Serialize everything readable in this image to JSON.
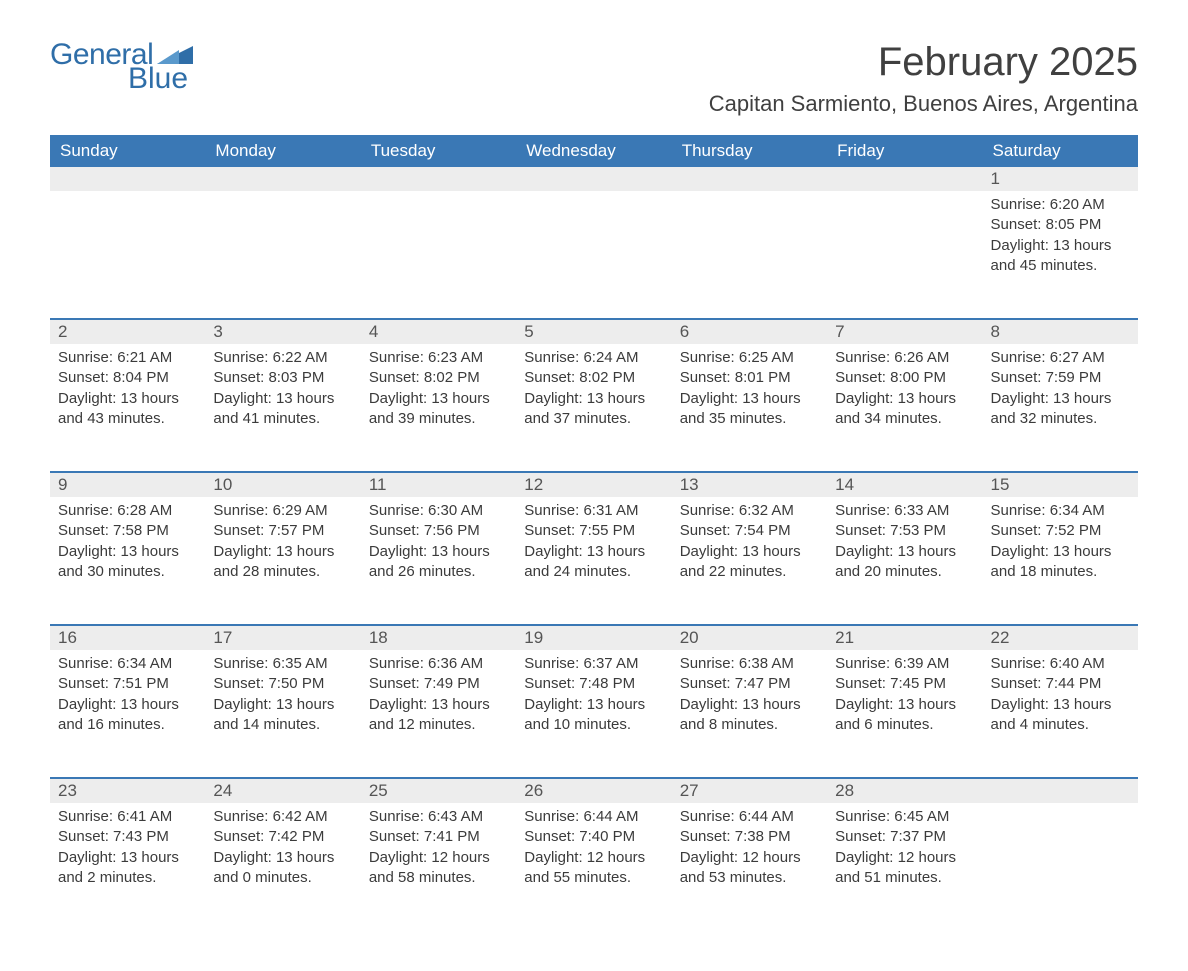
{
  "logo": {
    "text1": "General",
    "text2": "Blue",
    "triangle_color": "#2f6ea8"
  },
  "title": "February 2025",
  "location": "Capitan Sarmiento, Buenos Aires, Argentina",
  "colors": {
    "header_bg": "#3a78b5",
    "header_text": "#ffffff",
    "daynum_bg": "#ededed",
    "row_divider": "#3a78b5",
    "body_text": "#3b3b3b",
    "title_text": "#404040"
  },
  "day_headers": [
    "Sunday",
    "Monday",
    "Tuesday",
    "Wednesday",
    "Thursday",
    "Friday",
    "Saturday"
  ],
  "weeks": [
    [
      null,
      null,
      null,
      null,
      null,
      null,
      {
        "n": "1",
        "sunrise": "Sunrise: 6:20 AM",
        "sunset": "Sunset: 8:05 PM",
        "day1": "Daylight: 13 hours",
        "day2": "and 45 minutes."
      }
    ],
    [
      {
        "n": "2",
        "sunrise": "Sunrise: 6:21 AM",
        "sunset": "Sunset: 8:04 PM",
        "day1": "Daylight: 13 hours",
        "day2": "and 43 minutes."
      },
      {
        "n": "3",
        "sunrise": "Sunrise: 6:22 AM",
        "sunset": "Sunset: 8:03 PM",
        "day1": "Daylight: 13 hours",
        "day2": "and 41 minutes."
      },
      {
        "n": "4",
        "sunrise": "Sunrise: 6:23 AM",
        "sunset": "Sunset: 8:02 PM",
        "day1": "Daylight: 13 hours",
        "day2": "and 39 minutes."
      },
      {
        "n": "5",
        "sunrise": "Sunrise: 6:24 AM",
        "sunset": "Sunset: 8:02 PM",
        "day1": "Daylight: 13 hours",
        "day2": "and 37 minutes."
      },
      {
        "n": "6",
        "sunrise": "Sunrise: 6:25 AM",
        "sunset": "Sunset: 8:01 PM",
        "day1": "Daylight: 13 hours",
        "day2": "and 35 minutes."
      },
      {
        "n": "7",
        "sunrise": "Sunrise: 6:26 AM",
        "sunset": "Sunset: 8:00 PM",
        "day1": "Daylight: 13 hours",
        "day2": "and 34 minutes."
      },
      {
        "n": "8",
        "sunrise": "Sunrise: 6:27 AM",
        "sunset": "Sunset: 7:59 PM",
        "day1": "Daylight: 13 hours",
        "day2": "and 32 minutes."
      }
    ],
    [
      {
        "n": "9",
        "sunrise": "Sunrise: 6:28 AM",
        "sunset": "Sunset: 7:58 PM",
        "day1": "Daylight: 13 hours",
        "day2": "and 30 minutes."
      },
      {
        "n": "10",
        "sunrise": "Sunrise: 6:29 AM",
        "sunset": "Sunset: 7:57 PM",
        "day1": "Daylight: 13 hours",
        "day2": "and 28 minutes."
      },
      {
        "n": "11",
        "sunrise": "Sunrise: 6:30 AM",
        "sunset": "Sunset: 7:56 PM",
        "day1": "Daylight: 13 hours",
        "day2": "and 26 minutes."
      },
      {
        "n": "12",
        "sunrise": "Sunrise: 6:31 AM",
        "sunset": "Sunset: 7:55 PM",
        "day1": "Daylight: 13 hours",
        "day2": "and 24 minutes."
      },
      {
        "n": "13",
        "sunrise": "Sunrise: 6:32 AM",
        "sunset": "Sunset: 7:54 PM",
        "day1": "Daylight: 13 hours",
        "day2": "and 22 minutes."
      },
      {
        "n": "14",
        "sunrise": "Sunrise: 6:33 AM",
        "sunset": "Sunset: 7:53 PM",
        "day1": "Daylight: 13 hours",
        "day2": "and 20 minutes."
      },
      {
        "n": "15",
        "sunrise": "Sunrise: 6:34 AM",
        "sunset": "Sunset: 7:52 PM",
        "day1": "Daylight: 13 hours",
        "day2": "and 18 minutes."
      }
    ],
    [
      {
        "n": "16",
        "sunrise": "Sunrise: 6:34 AM",
        "sunset": "Sunset: 7:51 PM",
        "day1": "Daylight: 13 hours",
        "day2": "and 16 minutes."
      },
      {
        "n": "17",
        "sunrise": "Sunrise: 6:35 AM",
        "sunset": "Sunset: 7:50 PM",
        "day1": "Daylight: 13 hours",
        "day2": "and 14 minutes."
      },
      {
        "n": "18",
        "sunrise": "Sunrise: 6:36 AM",
        "sunset": "Sunset: 7:49 PM",
        "day1": "Daylight: 13 hours",
        "day2": "and 12 minutes."
      },
      {
        "n": "19",
        "sunrise": "Sunrise: 6:37 AM",
        "sunset": "Sunset: 7:48 PM",
        "day1": "Daylight: 13 hours",
        "day2": "and 10 minutes."
      },
      {
        "n": "20",
        "sunrise": "Sunrise: 6:38 AM",
        "sunset": "Sunset: 7:47 PM",
        "day1": "Daylight: 13 hours",
        "day2": "and 8 minutes."
      },
      {
        "n": "21",
        "sunrise": "Sunrise: 6:39 AM",
        "sunset": "Sunset: 7:45 PM",
        "day1": "Daylight: 13 hours",
        "day2": "and 6 minutes."
      },
      {
        "n": "22",
        "sunrise": "Sunrise: 6:40 AM",
        "sunset": "Sunset: 7:44 PM",
        "day1": "Daylight: 13 hours",
        "day2": "and 4 minutes."
      }
    ],
    [
      {
        "n": "23",
        "sunrise": "Sunrise: 6:41 AM",
        "sunset": "Sunset: 7:43 PM",
        "day1": "Daylight: 13 hours",
        "day2": "and 2 minutes."
      },
      {
        "n": "24",
        "sunrise": "Sunrise: 6:42 AM",
        "sunset": "Sunset: 7:42 PM",
        "day1": "Daylight: 13 hours",
        "day2": "and 0 minutes."
      },
      {
        "n": "25",
        "sunrise": "Sunrise: 6:43 AM",
        "sunset": "Sunset: 7:41 PM",
        "day1": "Daylight: 12 hours",
        "day2": "and 58 minutes."
      },
      {
        "n": "26",
        "sunrise": "Sunrise: 6:44 AM",
        "sunset": "Sunset: 7:40 PM",
        "day1": "Daylight: 12 hours",
        "day2": "and 55 minutes."
      },
      {
        "n": "27",
        "sunrise": "Sunrise: 6:44 AM",
        "sunset": "Sunset: 7:38 PM",
        "day1": "Daylight: 12 hours",
        "day2": "and 53 minutes."
      },
      {
        "n": "28",
        "sunrise": "Sunrise: 6:45 AM",
        "sunset": "Sunset: 7:37 PM",
        "day1": "Daylight: 12 hours",
        "day2": "and 51 minutes."
      },
      null
    ]
  ]
}
